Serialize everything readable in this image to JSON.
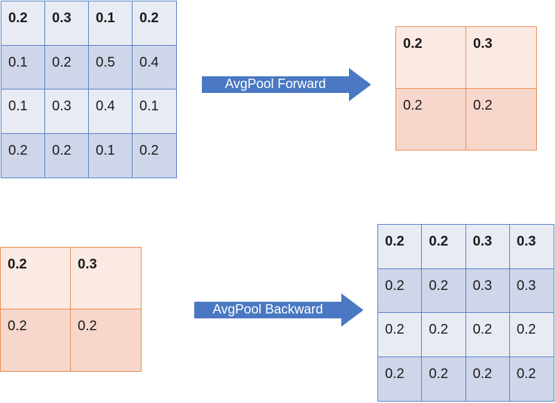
{
  "colors": {
    "blue_border": "#4f7fc4",
    "blue_light": "#e8ebf4",
    "blue_dark": "#cfd6e9",
    "orange_border": "#e98a4a",
    "orange_light": "#fbe9e4",
    "orange_dark": "#f7d6cb",
    "arrow_fill": "#4a78c2"
  },
  "forward": {
    "input": [
      [
        "0.2",
        "0.3",
        "0.1",
        "0.2"
      ],
      [
        "0.1",
        "0.2",
        "0.5",
        "0.4"
      ],
      [
        "0.1",
        "0.3",
        "0.4",
        "0.1"
      ],
      [
        "0.2",
        "0.2",
        "0.1",
        "0.2"
      ]
    ],
    "arrow_label": "AvgPool Forward",
    "output": [
      [
        "0.2",
        "0.3"
      ],
      [
        "0.2",
        "0.2"
      ]
    ]
  },
  "backward": {
    "input": [
      [
        "0.2",
        "0.3"
      ],
      [
        "0.2",
        "0.2"
      ]
    ],
    "arrow_label": "AvgPool Backward",
    "output": [
      [
        "0.2",
        "0.2",
        "0.3",
        "0.3"
      ],
      [
        "0.2",
        "0.2",
        "0.3",
        "0.3"
      ],
      [
        "0.2",
        "0.2",
        "0.2",
        "0.2"
      ],
      [
        "0.2",
        "0.2",
        "0.2",
        "0.2"
      ]
    ]
  }
}
